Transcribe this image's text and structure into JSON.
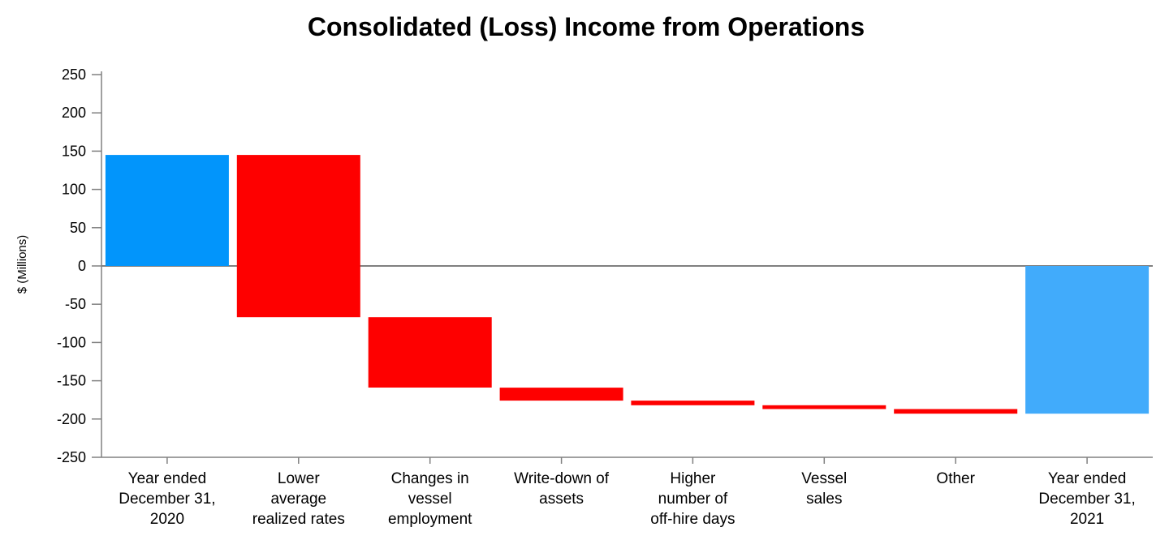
{
  "page": {
    "background_color": "#FFFFFF"
  },
  "chart_data": {
    "type": "bar",
    "subtype": "waterfall",
    "title": "Consolidated (Loss) Income from Operations",
    "xlabel": "",
    "ylabel": "$ (Millions)",
    "ylim": [
      -250,
      250
    ],
    "ytick_step": 50,
    "yticks": [
      250,
      200,
      150,
      100,
      50,
      0,
      -50,
      -100,
      -150,
      -200,
      -250
    ],
    "grid": false,
    "legend": "none",
    "zero_baseline": true,
    "categories": [
      "Year ended December 31, 2020",
      "Lower average realized rates",
      "Changes in vessel employment",
      "Write-down of assets",
      "Higher number of off-hire days",
      "Vessel sales",
      "Other",
      "Year ended December 31, 2021"
    ],
    "bars": [
      {
        "label": "Year ended December 31, 2020",
        "label_lines": [
          "Year ended",
          "December 31,",
          "2020"
        ],
        "role": "total",
        "value": 145,
        "start": 0,
        "end": 145,
        "color": "#0295FB"
      },
      {
        "label": "Lower average realized rates",
        "label_lines": [
          "Lower",
          "average",
          "realized rates"
        ],
        "role": "decrease",
        "value": -212,
        "start": 145,
        "end": -67,
        "color": "#FE0000"
      },
      {
        "label": "Changes in vessel employment",
        "label_lines": [
          "Changes in",
          "vessel",
          "employment"
        ],
        "role": "decrease",
        "value": -92,
        "start": -67,
        "end": -159,
        "color": "#FE0000"
      },
      {
        "label": "Write-down of assets",
        "label_lines": [
          "Write-down of",
          "assets"
        ],
        "role": "decrease",
        "value": -17,
        "start": -159,
        "end": -176,
        "color": "#FE0000"
      },
      {
        "label": "Higher number of off-hire days",
        "label_lines": [
          "Higher",
          "number of",
          "off-hire days"
        ],
        "role": "decrease",
        "value": -6,
        "start": -176,
        "end": -182,
        "color": "#FE0000"
      },
      {
        "label": "Vessel sales",
        "label_lines": [
          "Vessel",
          "sales"
        ],
        "role": "decrease",
        "value": -5,
        "start": -182,
        "end": -187,
        "color": "#FE0000"
      },
      {
        "label": "Other",
        "label_lines": [
          "Other"
        ],
        "role": "decrease",
        "value": -6,
        "start": -187,
        "end": -193,
        "color": "#FE0000"
      },
      {
        "label": "Year ended December 31, 2021",
        "label_lines": [
          "Year ended",
          "December 31,",
          "2021"
        ],
        "role": "total",
        "value": -193,
        "start": 0,
        "end": -193,
        "color": "#41ABFB"
      }
    ],
    "colors": {
      "total_2020": "#0295FB",
      "total_2021": "#41ABFB",
      "decrease": "#FE0000",
      "axis": "#808080",
      "text": "#000000"
    }
  }
}
